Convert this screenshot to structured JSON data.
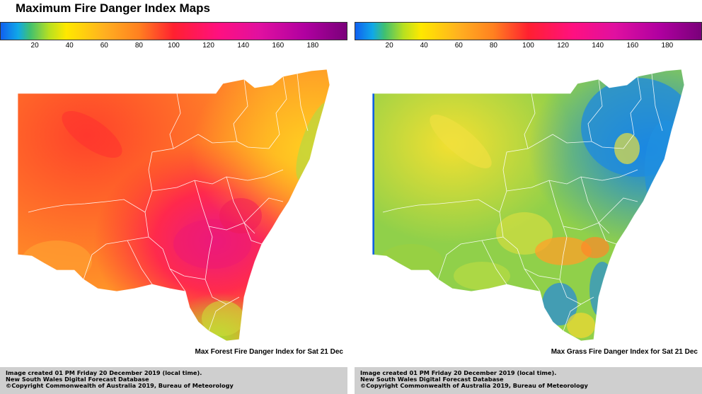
{
  "page": {
    "title": "Maximum Fire Danger Index Maps"
  },
  "colorbar": {
    "ticks": [
      "20",
      "40",
      "60",
      "80",
      "100",
      "120",
      "140",
      "160",
      "180"
    ],
    "min": 0,
    "max": 200
  },
  "panels": [
    {
      "map_title": "Max Forest Fire Danger Index for Sat 21 Dec",
      "footer": {
        "line1": "Image created 01 PM Friday 20 December 2019 (local time).",
        "line2": "New South Wales Digital Forecast Database",
        "line3": "©Copyright Commonwealth of Australia 2019, Bureau of Meteorology"
      }
    },
    {
      "map_title": "Max Grass Fire Danger Index for Sat 21 Dec",
      "footer": {
        "line1": "Image created 01 PM Friday 20 December 2019 (local time).",
        "line2": "New South Wales Digital Forecast Database",
        "line3": "©Copyright Commonwealth of Australia 2019, Bureau of Meteorology"
      }
    }
  ],
  "colors": {
    "footer_bg": "#cfcfcf",
    "boundary": "#ffffff"
  }
}
